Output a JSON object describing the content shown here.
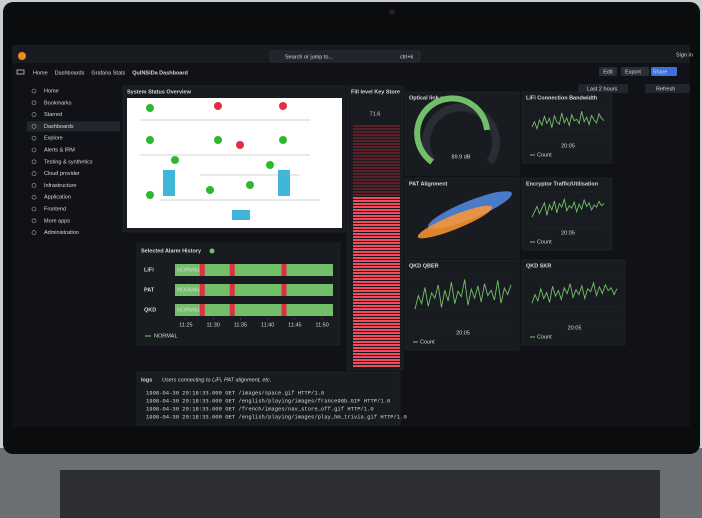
{
  "topbar": {
    "search": "Search or jump to...",
    "shortcut": "ctrl+k",
    "sign_in": "Sign in"
  },
  "breadcrumb": [
    "Home",
    "Dashboards",
    "Grafana Stats",
    "QuINSiDa Dashboard"
  ],
  "toolbar": {
    "edit": "Edit",
    "export": "Export",
    "share": "Share",
    "time_range": "Last 2 hours",
    "refresh": "Refresh"
  },
  "nav": {
    "items": [
      "Home",
      "Bookmarks",
      "Starred",
      "Dashboards",
      "Explore",
      "Alerts & IRM",
      "Testing & synthetics",
      "Cloud provider",
      "Infrastructure",
      "Application",
      "Frontend",
      "More apps",
      "Administration"
    ]
  },
  "panels": {
    "system_status": {
      "title": "System Status Overview"
    },
    "fill_level": {
      "title": "Fill level Key Store",
      "value": 71.6
    },
    "optical": {
      "title": "Optical link quality",
      "value": 89.9,
      "value_label": "89.9 dB"
    },
    "pat": {
      "title": "PAT Alignment"
    },
    "lifi": {
      "title": "LiFi Connection Bandwidth",
      "legend": "Count",
      "xtick": "20:05",
      "ylim": [
        0,
        100
      ],
      "values": [
        40,
        55,
        35,
        60,
        45,
        70,
        50,
        65,
        38,
        72,
        55,
        48,
        80,
        52,
        66,
        44,
        75,
        58,
        62,
        50,
        85,
        55,
        68,
        47,
        73,
        60,
        52,
        78,
        64,
        58
      ]
    },
    "encryptor": {
      "title": "Encryptor Traffic/Utilisation",
      "legend": "Count",
      "xtick": "20:05",
      "ylim": [
        0,
        100
      ],
      "values": [
        30,
        45,
        60,
        40,
        55,
        70,
        35,
        65,
        50,
        75,
        42,
        68,
        58,
        80,
        48,
        62,
        55,
        72,
        45,
        66,
        52,
        78,
        60,
        70,
        50,
        64,
        58,
        74,
        62,
        68
      ]
    },
    "qber": {
      "title": "QKD QBER",
      "legend": "Count",
      "xtick": "20:05",
      "ylim": [
        0,
        100
      ],
      "values": [
        35,
        60,
        45,
        75,
        40,
        65,
        55,
        80,
        38,
        70,
        50,
        85,
        45,
        68,
        58,
        90,
        42,
        72,
        55,
        78,
        48,
        82,
        60,
        70,
        52,
        88,
        46,
        74,
        62,
        80
      ]
    },
    "skr": {
      "title": "QKD SKR",
      "legend": "Count",
      "xtick": "20:05",
      "ylim": [
        0,
        100
      ],
      "values": [
        40,
        58,
        45,
        70,
        50,
        62,
        42,
        75,
        55,
        66,
        48,
        72,
        60,
        80,
        52,
        68,
        58,
        76,
        50,
        70,
        64,
        82,
        56,
        74,
        60,
        78,
        66,
        72,
        58,
        70
      ]
    },
    "alarm": {
      "title": "Selected Alarm History",
      "state": "NORMAL",
      "legend": "NORMAL",
      "xlim": [
        683,
        712
      ],
      "xticks": [
        {
          "value": 685,
          "label": "11:25"
        },
        {
          "value": 690,
          "label": "11:30"
        },
        {
          "value": 695,
          "label": "11:35"
        },
        {
          "value": 700,
          "label": "11:40"
        },
        {
          "value": 705,
          "label": "11:45"
        },
        {
          "value": 710,
          "label": "11:50"
        }
      ],
      "rows": [
        {
          "name": "LiFi",
          "alarms": [
            688,
            693.5,
            703
          ]
        },
        {
          "name": "PAT",
          "alarms": [
            688,
            693.5,
            703
          ]
        },
        {
          "name": "QKD",
          "alarms": [
            688,
            693.5,
            703
          ]
        }
      ]
    },
    "logs": {
      "title": "logs",
      "subtitle": "Users connecting to LiFi, PAT alignment, etc.",
      "lines": [
        "1998-04-30 20:18:33.000 GET /images/space.gif HTTP/1.0",
        "1998-04-30 20:18:33.000 GET /english/playing/images/france98b.GIF HTTP/1.0",
        "1998-04-30 20:18:33.000 GET /french/images/nav_store_off.gif HTTP/1.0",
        "1998-04-30 20:18:33.000 GET /english/playing/images/play_hm_trivia.gif HTTP/1.0"
      ]
    }
  }
}
